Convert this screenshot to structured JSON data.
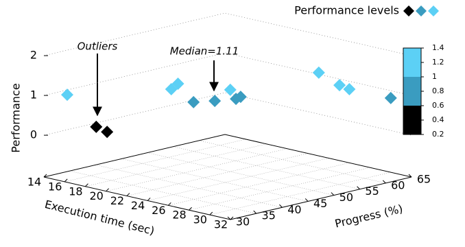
{
  "chart_data": {
    "type": "scatter3d",
    "legend_title": "Performance levels",
    "xlabel": "Execution time (sec)",
    "ylabel": "Progress (%)",
    "zlabel": "Performance",
    "xlim": [
      14,
      32
    ],
    "xticks": [
      14,
      16,
      18,
      20,
      22,
      24,
      26,
      28,
      30,
      32
    ],
    "ylim": [
      30,
      65
    ],
    "yticks": [
      30,
      35,
      40,
      45,
      50,
      55,
      60,
      65
    ],
    "zlim": [
      0,
      2
    ],
    "zticks": [
      0,
      1,
      2
    ],
    "grid": true,
    "colorbar": {
      "lim": [
        0.2,
        1.4
      ],
      "ticks": [
        0.2,
        0.4,
        0.6,
        0.8,
        1,
        1.2,
        1.4
      ],
      "levels": [
        {
          "from": 0.2,
          "to": 0.6,
          "color": "#000000"
        },
        {
          "from": 0.6,
          "to": 1,
          "color": "#3a9cc0"
        },
        {
          "from": 1,
          "to": 1.4,
          "color": "#5cd0f5"
        }
      ]
    },
    "series": [
      {
        "color": "#000000",
        "x": [
          17.3,
          19.3
        ],
        "y": [
          33.5,
          31.6
        ],
        "z": [
          0.3,
          0.35
        ]
      },
      {
        "color": "#3a9cc0",
        "x": [
          21.9,
          23.1,
          23.3,
          23.5,
          30.7
        ],
        "y": [
          43.1,
          44.8,
          48.5,
          49,
          63.6
        ],
        "z": [
          0.9,
          0.95,
          0.9,
          0.95,
          0.9
        ]
      },
      {
        "color": "#5cd0f5",
        "x": [
          16,
          20.6,
          20.2,
          23.2,
          25.2,
          28,
          28.9
        ],
        "y": [
          30.5,
          41.4,
          43.5,
          47.6,
          60.7,
          59.1,
          59.2
        ],
        "z": [
          1.12,
          1.2,
          1.25,
          1.15,
          1.3,
          1.2,
          1.15
        ]
      }
    ],
    "annotations": [
      {
        "text": "Outliers"
      },
      {
        "text": "Median=1.11"
      }
    ]
  }
}
